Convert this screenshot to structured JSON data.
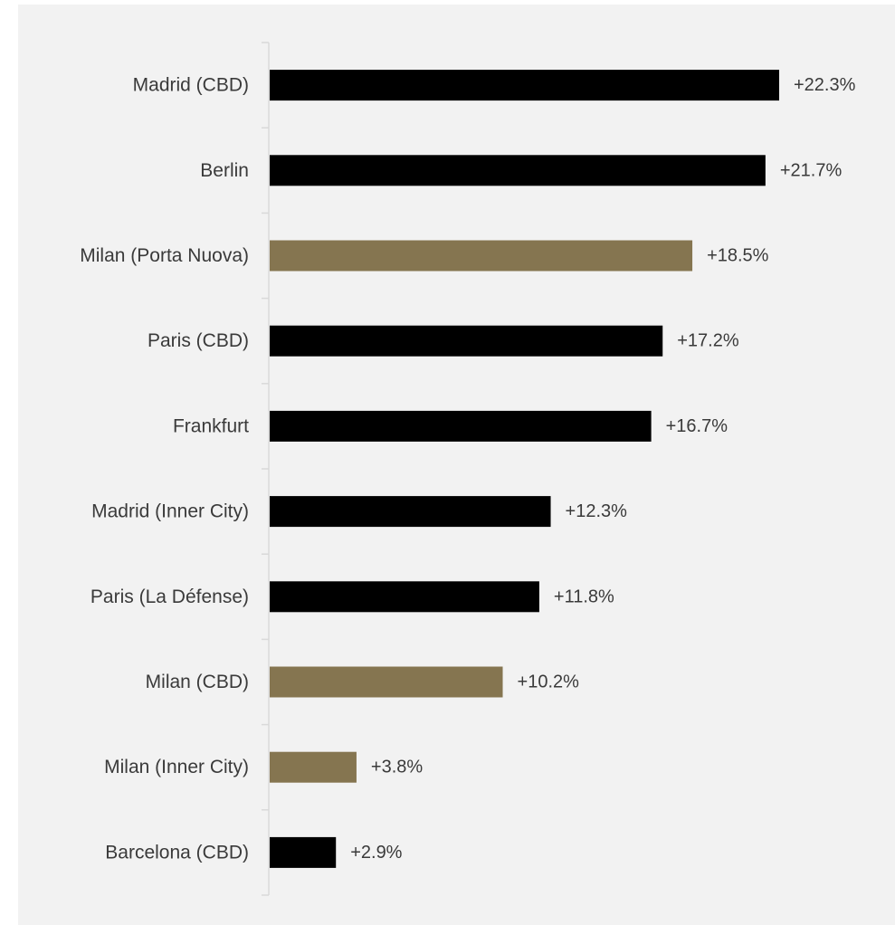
{
  "chart_data": {
    "type": "bar",
    "orientation": "horizontal",
    "categories": [
      "Madrid (CBD)",
      "Berlin",
      "Milan (Porta Nuova)",
      "Paris (CBD)",
      "Frankfurt",
      "Madrid (Inner City)",
      "Paris (La Défense)",
      "Milan (CBD)",
      "Milan (Inner City)",
      "Barcelona (CBD)"
    ],
    "values": [
      22.3,
      21.7,
      18.5,
      17.2,
      16.7,
      12.3,
      11.8,
      10.2,
      3.8,
      2.9
    ],
    "value_labels": [
      "+22.3%",
      "+21.7%",
      "+18.5%",
      "+17.2%",
      "+16.7%",
      "+12.3%",
      "+11.8%",
      "+10.2%",
      "+3.8%",
      "+2.9%"
    ],
    "highlighted": [
      false,
      false,
      true,
      false,
      false,
      false,
      false,
      true,
      true,
      false
    ],
    "colors": {
      "default": "#000000",
      "highlight": "#857550",
      "background": "#f2f2f2",
      "axis": "#d9d9d9",
      "text": "#3a3a3a"
    },
    "title": "",
    "xlabel": "",
    "ylabel": "",
    "xlim": [
      0,
      22.3
    ],
    "grid": false,
    "legend": "none"
  }
}
